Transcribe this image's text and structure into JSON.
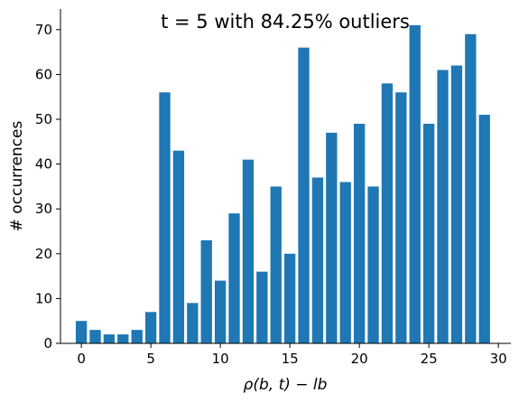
{
  "chart_data": {
    "type": "bar",
    "title": "t = 5 with 84.25% outliers",
    "xlabel": "ρ(b, t) − lb",
    "ylabel": "# occurrences",
    "x": [
      0,
      1,
      2,
      3,
      4,
      5,
      6,
      7,
      8,
      9,
      10,
      11,
      12,
      13,
      14,
      15,
      16,
      17,
      18,
      19,
      20,
      21,
      22,
      23,
      24,
      25,
      26,
      27,
      28,
      29
    ],
    "values": [
      5,
      3,
      2,
      2,
      3,
      7,
      56,
      43,
      9,
      23,
      14,
      29,
      41,
      16,
      35,
      20,
      66,
      37,
      47,
      36,
      49,
      35,
      58,
      56,
      71,
      49,
      61,
      62,
      69,
      51
    ],
    "xlim": [
      -1.5,
      30.9
    ],
    "ylim": [
      0,
      74.6
    ],
    "xticks": [
      0,
      5,
      10,
      15,
      20,
      25,
      30
    ],
    "yticks": [
      0,
      10,
      20,
      30,
      40,
      50,
      60,
      70
    ],
    "bar_color": "#1f77b4",
    "grid": false,
    "legend": "none"
  }
}
